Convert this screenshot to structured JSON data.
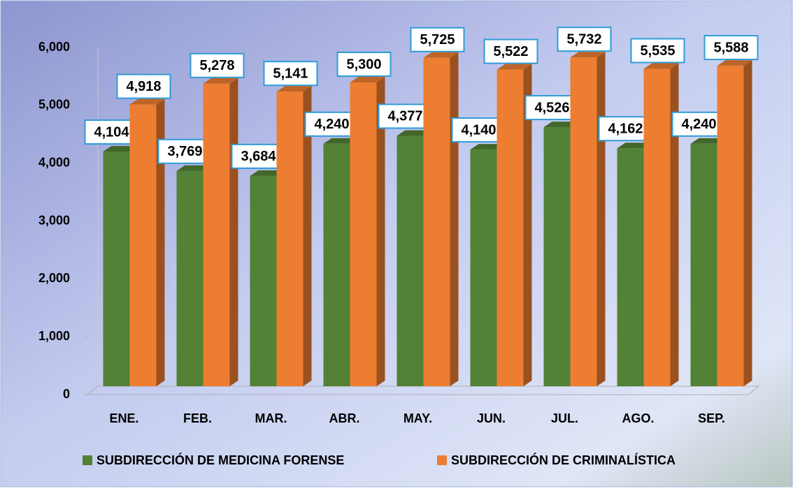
{
  "chart_data": {
    "type": "bar3d",
    "categories": [
      "ENE.",
      "FEB.",
      "MAR.",
      "ABR.",
      "MAY.",
      "JUN.",
      "JUL.",
      "AGO.",
      "SEP."
    ],
    "series": [
      {
        "name": "SUBDIRECCIÓN DE MEDICINA FORENSE",
        "color": "#538135",
        "values": [
          4104,
          3769,
          3684,
          4240,
          4377,
          4140,
          4526,
          4162,
          4240
        ],
        "value_labels": [
          "4,104",
          "3,769",
          "3,684",
          "4,240",
          "4,377",
          "4,140",
          "4,526",
          "4,162",
          "4,240"
        ]
      },
      {
        "name": "SUBDIRECCIÓN DE CRIMINALÍSTICA",
        "color": "#ed7d31",
        "values": [
          4918,
          5278,
          5141,
          5300,
          5725,
          5522,
          5732,
          5535,
          5588
        ],
        "value_labels": [
          "4,918",
          "5,278",
          "5,141",
          "5,300",
          "5,725",
          "5,522",
          "5,732",
          "5,535",
          "5,588"
        ]
      }
    ],
    "ylim": [
      0,
      6000
    ],
    "yticks": [
      0,
      {
        "value": 1000,
        "label": "1,000"
      },
      {
        "value": 2000,
        "label": "2,000"
      },
      {
        "value": 3000,
        "label": "3,000"
      },
      {
        "value": 4000,
        "label": "4,000"
      },
      {
        "value": 5000,
        "label": "5,000"
      },
      {
        "value": 6000,
        "label": "6,000"
      }
    ],
    "legend": "bottom"
  }
}
